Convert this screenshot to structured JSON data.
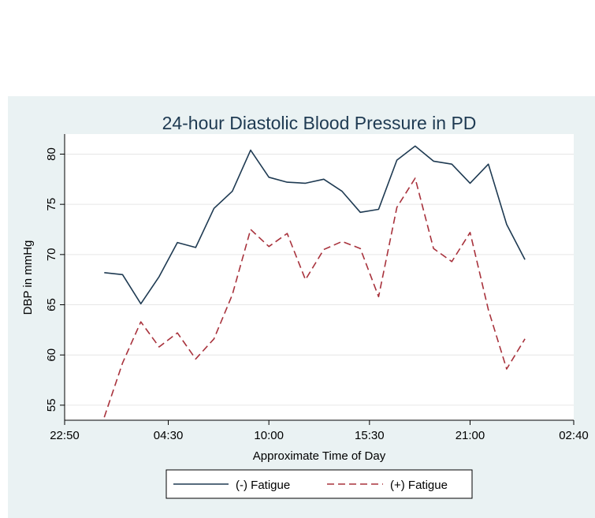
{
  "chart_data": {
    "type": "line",
    "title": "24-hour Diastolic Blood Pressure in PD",
    "xlabel": "Approximate Time of Day",
    "ylabel": "DBP in mmHg",
    "x_tick_labels": [
      "22:50",
      "04:30",
      "10:00",
      "15:30",
      "21:00",
      "02:40"
    ],
    "x_tick_hours": [
      22.833,
      28.5,
      34.0,
      39.5,
      45.0,
      50.667
    ],
    "y_ticks": [
      55,
      60,
      65,
      70,
      75,
      80
    ],
    "xlim": [
      22.833,
      50.667
    ],
    "ylim": [
      53.5,
      82.0
    ],
    "grid": true,
    "legend_position": "bottom",
    "x": [
      "01:00",
      "02:00",
      "03:00",
      "04:00",
      "05:00",
      "06:00",
      "07:00",
      "08:00",
      "09:00",
      "10:00",
      "11:00",
      "12:00",
      "13:00",
      "14:00",
      "15:00",
      "16:00",
      "17:00",
      "18:00",
      "19:00",
      "20:00",
      "21:00",
      "22:00",
      "23:00",
      "00:00"
    ],
    "x_hours": [
      25,
      26,
      27,
      28,
      29,
      30,
      31,
      32,
      33,
      34,
      35,
      36,
      37,
      38,
      39,
      40,
      41,
      42,
      43,
      44,
      45,
      46,
      47,
      48
    ],
    "series": [
      {
        "name": "(-) Fatigue",
        "color": "#1e3a52",
        "dash": "solid",
        "values": [
          68.2,
          68.0,
          65.1,
          67.8,
          71.2,
          70.7,
          74.6,
          76.3,
          80.4,
          77.7,
          77.2,
          77.1,
          77.5,
          76.3,
          74.2,
          74.5,
          79.4,
          80.8,
          79.3,
          79.0,
          77.1,
          79.0,
          73.0,
          69.5
        ]
      },
      {
        "name": "(+) Fatigue",
        "color": "#a8323c",
        "dash": "dashed",
        "values": [
          53.8,
          59.2,
          63.3,
          60.8,
          62.2,
          59.6,
          61.6,
          66.0,
          72.5,
          70.8,
          72.1,
          67.5,
          70.5,
          71.3,
          70.6,
          65.8,
          74.7,
          77.6,
          70.6,
          69.3,
          72.2,
          64.5,
          58.6,
          61.6
        ]
      }
    ]
  }
}
